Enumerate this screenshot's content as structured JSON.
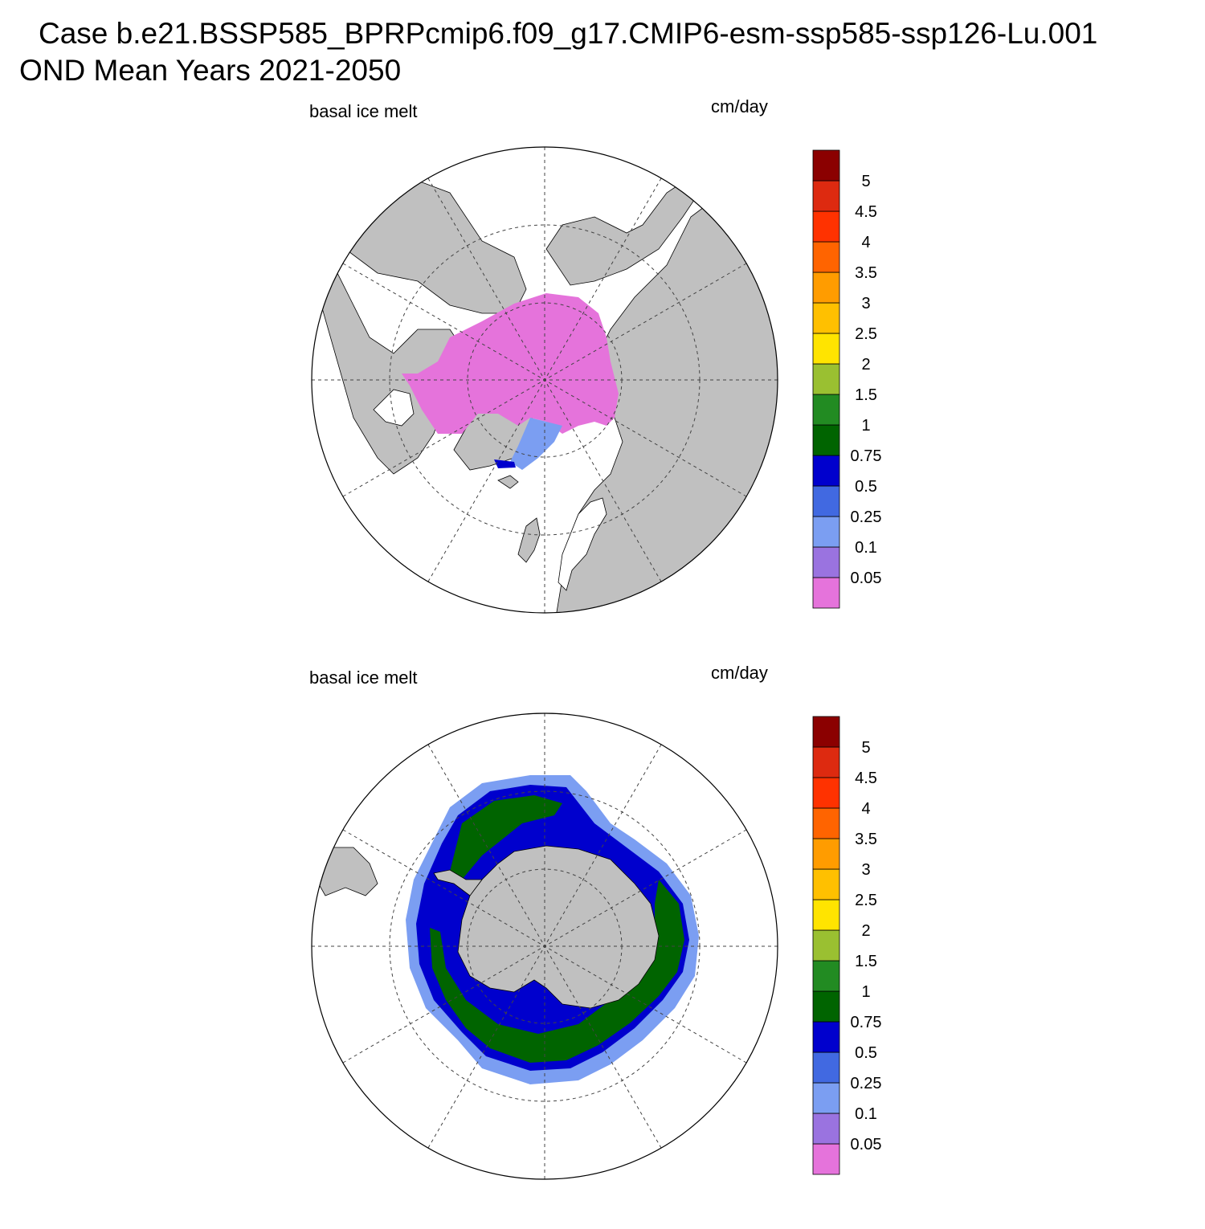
{
  "header": {
    "line1": "Case b.e21.BSSP585_BPRPcmip6.f09_g17.CMIP6-esm-ssp585-ssp126-Lu.001",
    "line2": "OND Mean   Years 2021-2050"
  },
  "panels": [
    {
      "id": "north",
      "variable": "basal ice melt",
      "units": "cm/day",
      "hemisphere": "north"
    },
    {
      "id": "south",
      "variable": "basal ice melt",
      "units": "cm/day",
      "hemisphere": "south"
    }
  ],
  "colorbar": {
    "labels": [
      "0.05",
      "0.1",
      "0.25",
      "0.5",
      "0.75",
      "1",
      "1.5",
      "2",
      "2.5",
      "3",
      "3.5",
      "4",
      "4.5",
      "5"
    ],
    "colors": [
      "#e573db",
      "#9a73e0",
      "#7b9ef2",
      "#4169e1",
      "#0000cd",
      "#006400",
      "#228b22",
      "#9ac031",
      "#ffe400",
      "#ffc000",
      "#ff9c00",
      "#ff6400",
      "#ff3200",
      "#dd2a10",
      "#8b0000"
    ]
  },
  "map_colors": {
    "land": "#c0c0c0",
    "ocean": "#ffffff",
    "outline": "#000000"
  }
}
